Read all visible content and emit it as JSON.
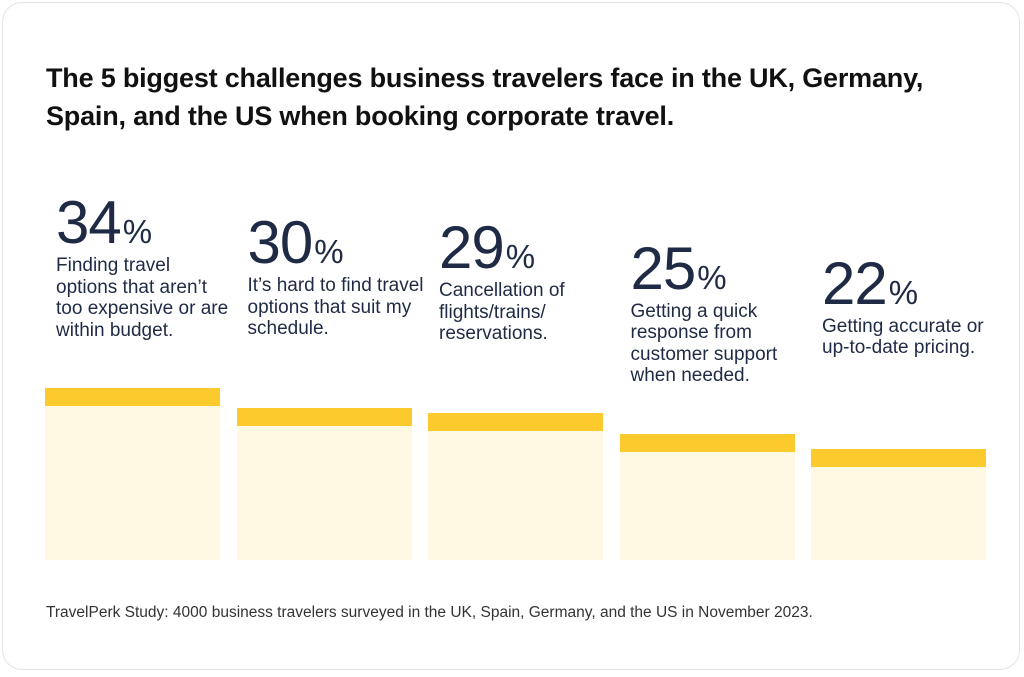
{
  "chart_data": {
    "type": "bar",
    "title": "The 5 biggest challenges business travelers face in the UK, Germany, Spain, and the US when booking corporate travel.",
    "unit_symbol": "%",
    "ylim": [
      0,
      34
    ],
    "bars": [
      {
        "value": 34,
        "label": "34",
        "description": "Finding travel options that aren’t too expensive or are within budget."
      },
      {
        "value": 30,
        "label": "30",
        "description": "It’s hard to find travel options that suit my schedule."
      },
      {
        "value": 29,
        "label": "29",
        "description": "Cancellation of flights/trains/ reservations."
      },
      {
        "value": 25,
        "label": "25",
        "description": "Getting a quick response from customer support when needed."
      },
      {
        "value": 22,
        "label": "22",
        "description": "Getting accurate or up-to-date pricing."
      }
    ],
    "source": "TravelPerk Study: 4000 business travelers surveyed in the UK, Spain, Germany, and the US in November 2023."
  },
  "colors": {
    "bar_fill": "#fff8e3",
    "bar_cap": "#fdca2e",
    "text_dark": "#1f2a44"
  }
}
